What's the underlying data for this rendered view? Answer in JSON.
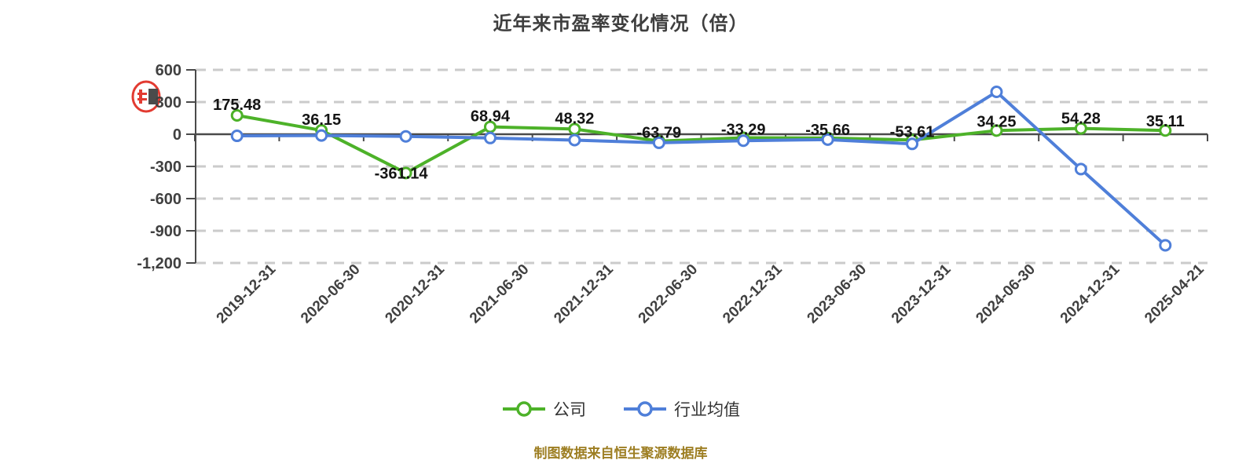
{
  "chart_data": {
    "type": "line",
    "title": "近年来市盈率变化情况（倍）",
    "categories": [
      "2019-12-31",
      "2020-06-30",
      "2020-12-31",
      "2021-06-30",
      "2021-12-31",
      "2022-06-30",
      "2022-12-31",
      "2023-06-30",
      "2023-12-31",
      "2024-06-30",
      "2024-12-31",
      "2025-04-21"
    ],
    "series": [
      {
        "name": "公司",
        "color": "#4db229",
        "marker": "circle-white-fill",
        "values": [
          175.48,
          36.15,
          -361.14,
          68.94,
          48.32,
          -63.79,
          -33.29,
          -35.66,
          -53.61,
          34.25,
          54.28,
          35.11
        ],
        "point_labels": [
          "175.48",
          "36.15",
          "-361.14",
          "68.94",
          "48.32",
          "-63.79",
          "-33.29",
          "-35.66",
          "-53.61",
          "34.25",
          "54.28",
          "35.11"
        ]
      },
      {
        "name": "行业均值",
        "color": "#4f7fd9",
        "marker": "circle-white-fill",
        "values": [
          -15,
          -12,
          -20,
          -35,
          -55,
          -80,
          -60,
          -50,
          -90,
          395,
          -325,
          -1035
        ],
        "point_labels": null
      }
    ],
    "ylim": [
      -1200,
      600
    ],
    "yticks": [
      {
        "value": 600,
        "label": "600"
      },
      {
        "value": 300,
        "label": "300"
      },
      {
        "value": 0,
        "label": "0"
      },
      {
        "value": -300,
        "label": "-300"
      },
      {
        "value": -600,
        "label": "-600"
      },
      {
        "value": -900,
        "label": "-900"
      },
      {
        "value": -1200,
        "label": "-1,200"
      }
    ],
    "grid": "horizontal-dashed",
    "legend_position": "bottom"
  },
  "footer": {
    "source_note": "制图数据来自恒生聚源数据库"
  },
  "colors": {
    "axis": "#4a4a4a",
    "gridline": "#cbcbcb",
    "tick_label": "#404040",
    "data_label": "#141414",
    "seal_red": "#e02b20"
  }
}
